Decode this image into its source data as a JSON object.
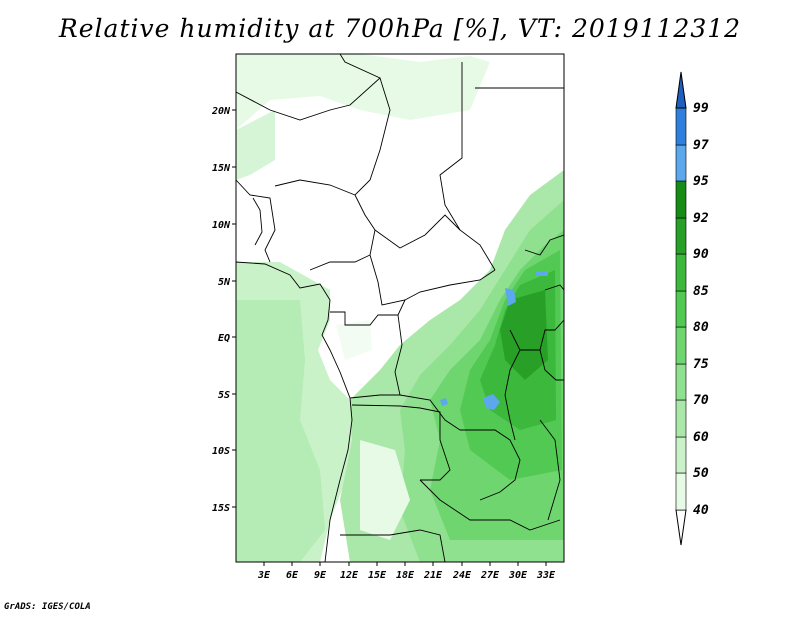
{
  "title": "Relative humidity at 700hPa [%], VT: 2019112312",
  "credit": "GrADS: IGES/COLA",
  "map": {
    "lat_labels": [
      "20N",
      "15N",
      "10N",
      "5N",
      "EQ",
      "5S",
      "10S",
      "15S"
    ],
    "lon_labels": [
      "3E",
      "6E",
      "9E",
      "12E",
      "15E",
      "18E",
      "21E",
      "24E",
      "27E",
      "30E",
      "33E"
    ]
  },
  "colorbar": {
    "levels": [
      "40",
      "50",
      "60",
      "70",
      "75",
      "80",
      "85",
      "90",
      "92",
      "95",
      "97",
      "99"
    ],
    "colors": [
      "#ffffff",
      "#e6fae6",
      "#c9f2c9",
      "#a9e8a9",
      "#8fe08f",
      "#6fd66f",
      "#52c952",
      "#3cb83c",
      "#28a028",
      "#168c16",
      "#5ca8ec",
      "#2e7fde",
      "#1f5fbf"
    ]
  }
}
